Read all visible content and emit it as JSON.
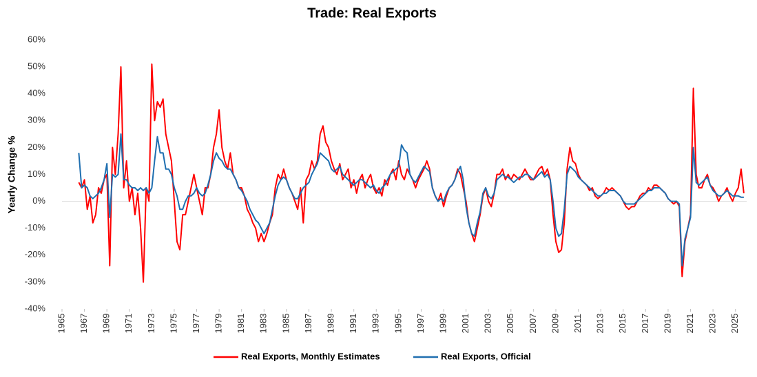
{
  "chart_data": {
    "type": "line",
    "title": "Trade: Real Exports",
    "y_label": "Yearly Change %",
    "x": [
      1966.5,
      1966.75,
      1967,
      1967.25,
      1967.5,
      1967.75,
      1968,
      1968.25,
      1968.5,
      1968.75,
      1969,
      1969.25,
      1969.5,
      1969.75,
      1970,
      1970.25,
      1970.5,
      1970.75,
      1971,
      1971.25,
      1971.5,
      1971.75,
      1972,
      1972.25,
      1972.5,
      1972.75,
      1973,
      1973.25,
      1973.5,
      1973.75,
      1974,
      1974.25,
      1974.5,
      1974.75,
      1975,
      1975.25,
      1975.5,
      1975.75,
      1976,
      1976.25,
      1976.5,
      1976.75,
      1977,
      1977.25,
      1977.5,
      1977.75,
      1978,
      1978.25,
      1978.5,
      1978.75,
      1979,
      1979.25,
      1979.5,
      1979.75,
      1980,
      1980.25,
      1980.5,
      1980.75,
      1981,
      1981.25,
      1981.5,
      1981.75,
      1982,
      1982.25,
      1982.5,
      1982.75,
      1983,
      1983.25,
      1983.5,
      1983.75,
      1984,
      1984.25,
      1984.5,
      1984.75,
      1985,
      1985.25,
      1985.5,
      1985.75,
      1986,
      1986.25,
      1986.5,
      1986.75,
      1987,
      1987.25,
      1987.5,
      1987.75,
      1988,
      1988.25,
      1988.5,
      1988.75,
      1989,
      1989.25,
      1989.5,
      1989.75,
      1990,
      1990.25,
      1990.5,
      1990.75,
      1991,
      1991.25,
      1991.5,
      1991.75,
      1992,
      1992.25,
      1992.5,
      1992.75,
      1993,
      1993.25,
      1993.5,
      1993.75,
      1994,
      1994.25,
      1994.5,
      1994.75,
      1995,
      1995.25,
      1995.5,
      1995.75,
      1996,
      1996.25,
      1996.5,
      1996.75,
      1997,
      1997.25,
      1997.5,
      1997.75,
      1998,
      1998.25,
      1998.5,
      1998.75,
      1999,
      1999.25,
      1999.5,
      1999.75,
      2000,
      2000.25,
      2000.5,
      2000.75,
      2001,
      2001.25,
      2001.5,
      2001.75,
      2002,
      2002.25,
      2002.5,
      2002.75,
      2003,
      2003.25,
      2003.5,
      2003.75,
      2004,
      2004.25,
      2004.5,
      2004.75,
      2005,
      2005.25,
      2005.5,
      2005.75,
      2006,
      2006.25,
      2006.5,
      2006.75,
      2007,
      2007.25,
      2007.5,
      2007.75,
      2008,
      2008.25,
      2008.5,
      2008.75,
      2009,
      2009.25,
      2009.5,
      2009.75,
      2010,
      2010.25,
      2010.5,
      2010.75,
      2011,
      2011.25,
      2011.5,
      2011.75,
      2012,
      2012.25,
      2012.5,
      2012.75,
      2013,
      2013.25,
      2013.5,
      2013.75,
      2014,
      2014.25,
      2014.5,
      2014.75,
      2015,
      2015.25,
      2015.5,
      2015.75,
      2016,
      2016.25,
      2016.5,
      2016.75,
      2017,
      2017.25,
      2017.5,
      2017.75,
      2018,
      2018.25,
      2018.5,
      2018.75,
      2019,
      2019.25,
      2019.5,
      2019.75,
      2020,
      2020.25,
      2020.5,
      2020.75,
      2021,
      2021.25,
      2021.5,
      2021.75,
      2022,
      2022.25,
      2022.5,
      2022.75,
      2023,
      2023.25,
      2023.5,
      2023.75,
      2024,
      2024.25,
      2024.5,
      2024.75,
      2025,
      2025.25,
      2025.5,
      2025.75
    ],
    "series": [
      {
        "name": "Real Exports, Monthly Estimates",
        "color": "#ff0000",
        "values": [
          7,
          5,
          8,
          -3,
          2,
          -8,
          -5,
          5,
          3,
          8,
          10,
          -24,
          20,
          10,
          25,
          50,
          5,
          15,
          0,
          5,
          -5,
          3,
          -10,
          -30,
          5,
          0,
          51,
          30,
          37,
          35,
          38,
          25,
          20,
          15,
          0,
          -15,
          -18,
          -5,
          -5,
          0,
          5,
          10,
          5,
          0,
          -5,
          5,
          5,
          10,
          20,
          25,
          34,
          20,
          15,
          12,
          18,
          10,
          8,
          5,
          5,
          2,
          -3,
          -5,
          -8,
          -10,
          -15,
          -12,
          -15,
          -12,
          -8,
          -5,
          5,
          10,
          8,
          12,
          8,
          5,
          3,
          0,
          -3,
          5,
          -8,
          8,
          10,
          15,
          12,
          15,
          25,
          28,
          22,
          20,
          15,
          12,
          10,
          14,
          8,
          10,
          12,
          5,
          8,
          3,
          8,
          10,
          5,
          8,
          10,
          5,
          3,
          5,
          2,
          8,
          6,
          10,
          12,
          8,
          15,
          10,
          8,
          12,
          10,
          8,
          5,
          8,
          10,
          12,
          15,
          12,
          5,
          2,
          0,
          3,
          -2,
          2,
          5,
          6,
          8,
          12,
          10,
          5,
          0,
          -8,
          -12,
          -15,
          -10,
          -5,
          2,
          5,
          0,
          -2,
          3,
          10,
          10,
          12,
          8,
          10,
          8,
          10,
          9,
          8,
          10,
          12,
          10,
          8,
          8,
          10,
          12,
          13,
          10,
          12,
          8,
          -5,
          -15,
          -19,
          -18,
          -8,
          12,
          20,
          15,
          14,
          10,
          8,
          7,
          6,
          4,
          5,
          2,
          1,
          2,
          3,
          5,
          4,
          5,
          4,
          3,
          2,
          0,
          -2,
          -3,
          -2,
          -2,
          0,
          2,
          3,
          3,
          5,
          4,
          6,
          6,
          5,
          4,
          3,
          1,
          0,
          -1,
          0,
          -2,
          -28,
          -15,
          -10,
          -5,
          42,
          10,
          5,
          5,
          8,
          10,
          6,
          5,
          3,
          0,
          2,
          3,
          5,
          2,
          0,
          3,
          5,
          12,
          3
        ]
      },
      {
        "name": "Real Exports, Official",
        "color": "#1f6fb0",
        "values": [
          18,
          5,
          6,
          5,
          2,
          1,
          2,
          3,
          5,
          8,
          14,
          -6,
          10,
          9,
          10,
          25,
          8,
          8,
          6,
          5,
          5,
          4,
          5,
          4,
          5,
          3,
          5,
          15,
          24,
          18,
          18,
          12,
          12,
          10,
          5,
          2,
          -3,
          -3,
          0,
          2,
          2,
          3,
          5,
          3,
          2,
          3,
          6,
          10,
          15,
          18,
          16,
          15,
          13,
          12,
          12,
          10,
          8,
          5,
          4,
          2,
          0,
          -3,
          -5,
          -7,
          -8,
          -10,
          -12,
          -10,
          -8,
          -3,
          2,
          6,
          8,
          9,
          8,
          5,
          3,
          1,
          1,
          3,
          5,
          6,
          7,
          10,
          12,
          14,
          18,
          17,
          16,
          15,
          12,
          11,
          12,
          13,
          10,
          9,
          8,
          7,
          6,
          7,
          8,
          8,
          7,
          6,
          5,
          6,
          4,
          3,
          5,
          6,
          8,
          10,
          11,
          12,
          13,
          21,
          19,
          18,
          10,
          8,
          7,
          9,
          11,
          13,
          12,
          11,
          5,
          2,
          0,
          1,
          0,
          3,
          5,
          6,
          8,
          11,
          13,
          8,
          -2,
          -8,
          -12,
          -13,
          -8,
          -4,
          3,
          5,
          2,
          1,
          3,
          8,
          9,
          10,
          9,
          9,
          8,
          7,
          8,
          9,
          9,
          10,
          10,
          9,
          8,
          9,
          10,
          11,
          9,
          10,
          8,
          0,
          -10,
          -13,
          -12,
          -3,
          10,
          13,
          12,
          11,
          9,
          8,
          7,
          6,
          5,
          4,
          3,
          2,
          2,
          3,
          3,
          4,
          4,
          4,
          3,
          2,
          0,
          -1,
          -1,
          -1,
          -1,
          0,
          1,
          2,
          3,
          4,
          4,
          5,
          5,
          5,
          4,
          3,
          1,
          0,
          0,
          0,
          -1,
          -24,
          -14,
          -10,
          -6,
          20,
          7,
          6,
          7,
          8,
          9,
          6,
          4,
          3,
          2,
          2,
          3,
          4,
          3,
          2,
          2,
          2,
          1.5,
          1.5
        ]
      }
    ],
    "xlim": [
      1965,
      2026
    ],
    "xticks": [
      1965,
      1967,
      1969,
      1971,
      1973,
      1975,
      1977,
      1979,
      1981,
      1983,
      1985,
      1987,
      1989,
      1991,
      1993,
      1995,
      1997,
      1999,
      2001,
      2003,
      2005,
      2007,
      2009,
      2011,
      2013,
      2015,
      2017,
      2019,
      2021,
      2023,
      2025
    ],
    "ylim": [
      -40,
      60
    ],
    "yticks": [
      {
        "value": -40,
        "label": "-40%"
      },
      {
        "value": -30,
        "label": "-30%"
      },
      {
        "value": -20,
        "label": "-20%"
      },
      {
        "value": -10,
        "label": "-10%"
      },
      {
        "value": 0,
        "label": "0%"
      },
      {
        "value": 10,
        "label": "10%"
      },
      {
        "value": 20,
        "label": "20%"
      },
      {
        "value": 30,
        "label": "30%"
      },
      {
        "value": 40,
        "label": "40%"
      },
      {
        "value": 50,
        "label": "50%"
      },
      {
        "value": 60,
        "label": "60%"
      }
    ],
    "legend": "bottom"
  }
}
